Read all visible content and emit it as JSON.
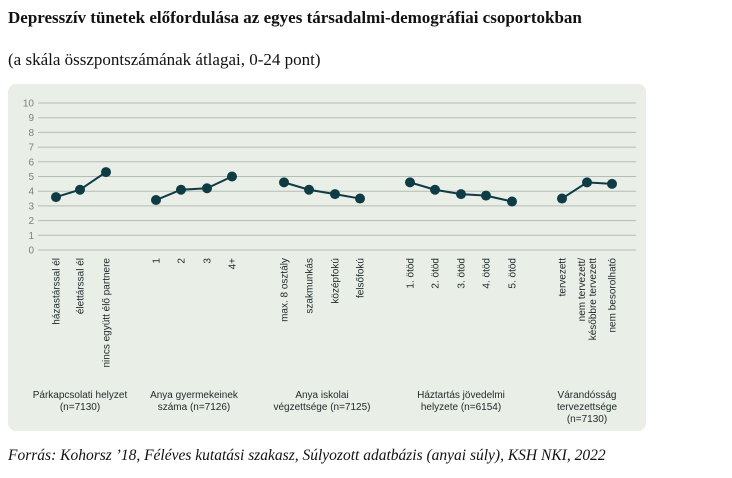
{
  "title": "Depresszív tünetek előfordulása az egyes társadalmi-demográfiai csoportokban",
  "subtitle": "(a skála összpontszámának átlagai, 0-24 pont)",
  "source": "Forrás: Kohorsz ’18, Féléves kutatási szakasz, Súlyozott adatbázis (anyai súly), KSH NKI, 2022",
  "colors": {
    "line": "#0f3b45",
    "grid": "#b3bdb5",
    "panel": "#e9eee7",
    "text": "#1e2a2a"
  },
  "chart_data": {
    "type": "line",
    "ylim": [
      0,
      10
    ],
    "yticks": [
      "0",
      "1",
      "2",
      "3",
      "4",
      "5",
      "6",
      "7",
      "8",
      "9",
      "10"
    ],
    "grid": true,
    "groups": [
      {
        "label": [
          "Párkapcsolati helyzet",
          "(n=7130)"
        ],
        "categories": [
          [
            "házastárssal él"
          ],
          [
            "élettárssal él"
          ],
          [
            "nincs együtt élő partnere"
          ]
        ],
        "values": [
          3.6,
          4.1,
          5.3
        ]
      },
      {
        "label": [
          "Anya gyermekeinek",
          "száma (n=7126)"
        ],
        "categories": [
          [
            "1"
          ],
          [
            "2"
          ],
          [
            "3"
          ],
          [
            "4+"
          ]
        ],
        "values": [
          3.4,
          4.1,
          4.2,
          5.0
        ]
      },
      {
        "label": [
          "Anya iskolai",
          "végzettsége (n=7125)"
        ],
        "categories": [
          [
            "max. 8 osztály"
          ],
          [
            "szakmunkás"
          ],
          [
            "középfokú"
          ],
          [
            "felsőfokú"
          ]
        ],
        "values": [
          4.6,
          4.1,
          3.8,
          3.5
        ]
      },
      {
        "label": [
          "Háztartás jövedelmi",
          "helyzete (n=6154)"
        ],
        "categories": [
          [
            "1. ötöd"
          ],
          [
            "2. ötöd"
          ],
          [
            "3. ötöd"
          ],
          [
            "4. ötöd"
          ],
          [
            "5. ötöd"
          ]
        ],
        "values": [
          4.6,
          4.1,
          3.8,
          3.7,
          3.3
        ]
      },
      {
        "label": [
          "Várandósság",
          "tervezettsége",
          "(n=7130)"
        ],
        "categories": [
          [
            "tervezett"
          ],
          [
            "nem tervezett/",
            "későbbre tervezett"
          ],
          [
            "nem besorolható"
          ]
        ],
        "values": [
          3.5,
          4.6,
          4.5
        ]
      }
    ]
  }
}
